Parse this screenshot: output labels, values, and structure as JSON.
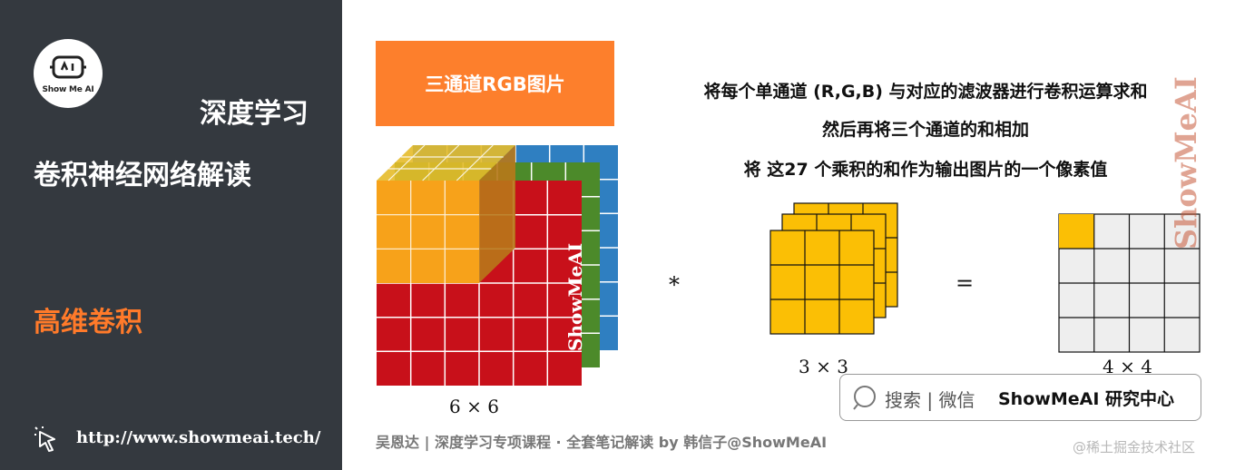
{
  "sidebar": {
    "logo_text": "Show Me AI",
    "subtitle": "深度学习",
    "title": "卷积神经网络解读",
    "section": "高维卷积",
    "url": "http://www.showmeai.tech/"
  },
  "banner": {
    "label": "三通道RGB图片"
  },
  "description": {
    "line1": "将每个单通道 (R,G,B) 与对应的滤波器进行卷积运算求和",
    "line2": "然后再将三个通道的和相加",
    "line3": "将 这27 个乘积的和作为输出图片的一个像素值"
  },
  "figure": {
    "input_label": "6 × 6",
    "filter_label": "3 × 3",
    "output_label": "4 × 4",
    "conv_operator": "*",
    "equals_operator": "=",
    "watermark": "ShowMeAI",
    "colors": {
      "red": "#c8101a",
      "orange": "#f7a21a",
      "green": "#4c8a2a",
      "blue": "#2f7fc1",
      "yellow": "#fbbf05",
      "grey_cell": "#eeeeee"
    }
  },
  "watermark_right": "ShowMeAI",
  "search": {
    "label": "搜索 | 微信",
    "brand": "ShowMeAI 研究中心"
  },
  "footer": {
    "credit": "吴恩达 | 深度学习专项课程 · 全套笔记解读  by 韩信子@ShowMeAI",
    "source": "@稀土掘金技术社区"
  }
}
